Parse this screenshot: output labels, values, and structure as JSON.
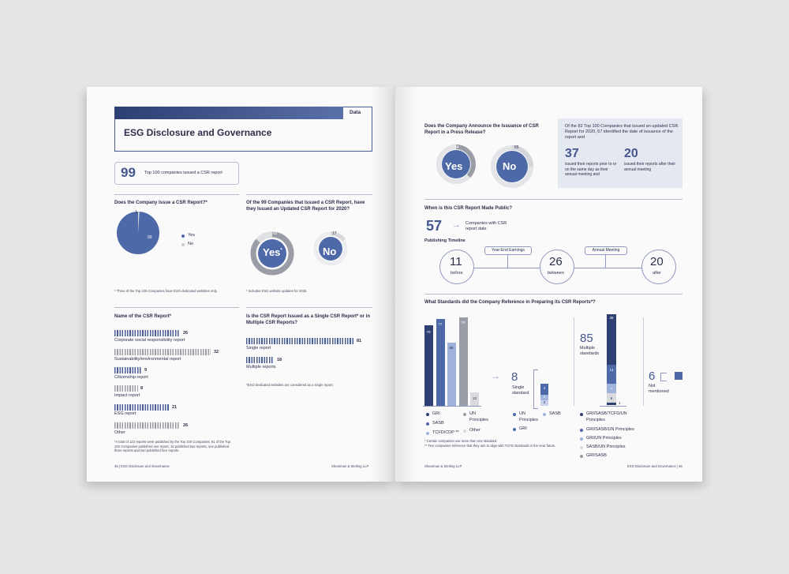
{
  "left_page": {
    "tag": "Data",
    "title": "ESG Disclosure and Governance",
    "headline": {
      "number": "99",
      "text": "Top 100 companies issued a CSR report"
    },
    "q1": {
      "title": "Does the Company Issue a CSR Report?*",
      "pie_yes": "99",
      "pie_no": "1",
      "legend_yes": "Yes",
      "legend_no": "No",
      "footnote": "* Three of the Top 100 Companies have ESG-dedicated websites only."
    },
    "q2": {
      "title": "Of the 99 Companies that Issued a CSR Report, have they Issued an Updated CSR Report for 2020?",
      "yes_label": "Yes",
      "yes_sup": "*",
      "yes_value": "82",
      "no_label": "No",
      "no_value": "17",
      "footnote": "* Includes ESG website updates for 2020."
    },
    "q3": {
      "title": "Name of the CSR Report*",
      "items": [
        {
          "label": "Corporate social responsibility report",
          "value": "26"
        },
        {
          "label": "Sustainability/environmental report",
          "value": "32"
        },
        {
          "label": "Citizenship report",
          "value": "9"
        },
        {
          "label": "Impact report",
          "value": "8"
        },
        {
          "label": "ESG report",
          "value": "21"
        },
        {
          "label": "Other",
          "value": "26"
        }
      ],
      "footnote": "*A total of 122 reports were published by the Top 100 Companies. 81 of the Top 100 Companies published one report, 15 published two reports, one published three reports and two published four reports."
    },
    "q4": {
      "title": "Is the CSR Report Issued as a Single CSR Report* or in Multiple CSR Reports?",
      "items": [
        {
          "label": "Single report",
          "value": "81"
        },
        {
          "label": "Multiple reports",
          "value": "18"
        }
      ],
      "footnote": "*ESG-dedicated websites are considered as a single report."
    },
    "footer_left": "45 | ESG Disclosure and Governance",
    "footer_right": "Shearman & Sterling LLP"
  },
  "right_page": {
    "press": {
      "title": "Does the Company Announce the Issuance of CSR Report in a Press Release?",
      "yes_label": "Yes",
      "yes_value": "34",
      "no_label": "No",
      "no_value": "65"
    },
    "box": {
      "text": "Of the 82 Top 100 Companies that issued an updated CSR Report for 2020, 57 identified the date of issuance of the report and",
      "n1": "37",
      "t1": "issued their reports prior to or on the same day as their annual meeting and",
      "n2": "20",
      "t2": "issued their reports after their annual meeting"
    },
    "when": {
      "title": "When is this CSR Report Made Public?",
      "number": "57",
      "arrow": "→",
      "text": "Companies with CSR report date",
      "timeline_title": "Publishing Timeline",
      "pill1": "Year-End Earnings",
      "pill2": "Annual Meeting",
      "c1_num": "11",
      "c1_lbl": "before",
      "c2_num": "26",
      "c2_lbl": "between",
      "c3_num": "20",
      "c3_lbl": "after"
    },
    "standards": {
      "title": "What Standards did the Company Reference in Preparing its CSR Reports*?",
      "bar_values": [
        "70",
        "77",
        "56",
        "78",
        "12"
      ],
      "legend": [
        "GRI",
        "SASB",
        "TCFD/CDP **",
        "UN Principles",
        "Other"
      ],
      "single": {
        "number": "8",
        "arrow": "→",
        "label": "Single standard",
        "values": [
          "4",
          "2",
          "2"
        ],
        "legend": [
          "UN Principles",
          "SASB",
          "GRI"
        ]
      },
      "multiple": {
        "number": "85",
        "label": "Multiple standards",
        "values": [
          "38",
          "14",
          "7",
          "6",
          "1"
        ],
        "legend": [
          "GRI/SASB/TCFD/UN Principles",
          "GRI/SASB/UN Principles",
          "GRI/UN Principles",
          "SASB/UN Principles",
          "GRI/SASB"
        ]
      },
      "none": {
        "number": "6",
        "label": "Not mentioned"
      },
      "footnote1": "* Certain companies use more than one standard.",
      "footnote2": "** Two companies reference that they aim to align with TCFD standards in the near future."
    },
    "footer_left": "Shearman & Sterling LLP",
    "footer_right": "ESG Disclosure and Governance | 46"
  },
  "colors": {
    "navy": "#2d3f73",
    "mid_blue": "#4e69a8",
    "light_blue": "#9fb2dc",
    "gray": "#9a9ca6",
    "light_gray": "#d9dade",
    "box_bg": "#e4e8f1"
  }
}
